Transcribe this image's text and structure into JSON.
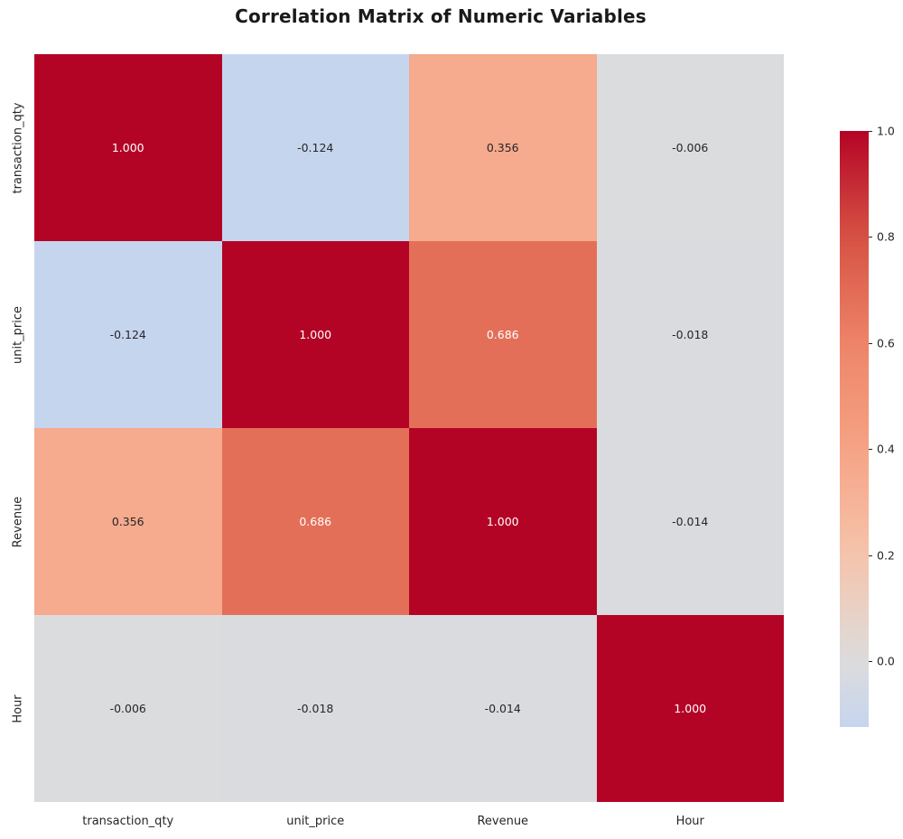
{
  "title": "Correlation Matrix of Numeric Variables",
  "chart_data": {
    "type": "heatmap",
    "title": "Correlation Matrix of Numeric Variables",
    "categories": [
      "transaction_qty",
      "unit_price",
      "Revenue",
      "Hour"
    ],
    "matrix": [
      [
        1.0,
        -0.124,
        0.356,
        -0.006
      ],
      [
        -0.124,
        1.0,
        0.686,
        -0.018
      ],
      [
        0.356,
        0.686,
        1.0,
        -0.014
      ],
      [
        -0.006,
        -0.018,
        -0.014,
        1.0
      ]
    ],
    "value_decimals": 3,
    "grid": false,
    "colormap": {
      "name": "coolwarm",
      "center": 0,
      "vmin": -0.124,
      "vmax": 1.0,
      "anchors": [
        {
          "t": 0.0,
          "color": "#3b4cc0"
        },
        {
          "t": 0.2,
          "color": "#7b9ff9"
        },
        {
          "t": 0.4,
          "color": "#b8d0f9"
        },
        {
          "t": 0.5,
          "color": "#dcdcdc"
        },
        {
          "t": 0.6,
          "color": "#f5c4ac"
        },
        {
          "t": 0.7,
          "color": "#f6a385"
        },
        {
          "t": 0.8,
          "color": "#ee8468"
        },
        {
          "t": 0.9,
          "color": "#d65244"
        },
        {
          "t": 1.0,
          "color": "#b40426"
        }
      ],
      "annot_color_dark": "#262626",
      "annot_color_light": "#ffffff"
    },
    "colorbar": {
      "position": "right",
      "ticks": [
        1.0,
        0.8,
        0.6,
        0.4,
        0.2,
        0.0
      ],
      "tick_labels": [
        "1.0",
        "0.8",
        "0.6",
        "0.4",
        "0.2",
        "0.0"
      ]
    }
  }
}
